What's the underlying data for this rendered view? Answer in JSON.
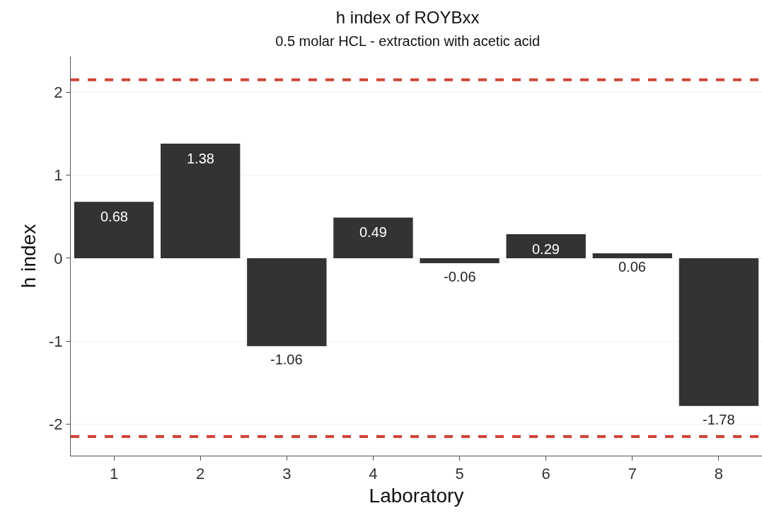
{
  "chart_data": {
    "type": "bar",
    "title": "h index of ROYBxx",
    "subtitle": "0.5 molar HCL - extraction with acetic acid",
    "xlabel": "Laboratory",
    "ylabel": "h index",
    "categories": [
      "1",
      "2",
      "3",
      "4",
      "5",
      "6",
      "7",
      "8"
    ],
    "values": [
      0.68,
      1.38,
      -1.06,
      0.49,
      -0.06,
      0.29,
      0.06,
      -1.78
    ],
    "color": "#333333",
    "ylim": [
      -2.38,
      2.43
    ],
    "yticks": [
      -2,
      -1,
      0,
      1,
      2
    ],
    "grid": "y",
    "data_labels": true,
    "ref_lines": [
      {
        "axis": "y",
        "value": 2.15,
        "color": "#d04437",
        "line_style": "dashed"
      },
      {
        "axis": "y",
        "value": -2.15,
        "color": "#d04437",
        "line_style": "dashed"
      }
    ]
  }
}
